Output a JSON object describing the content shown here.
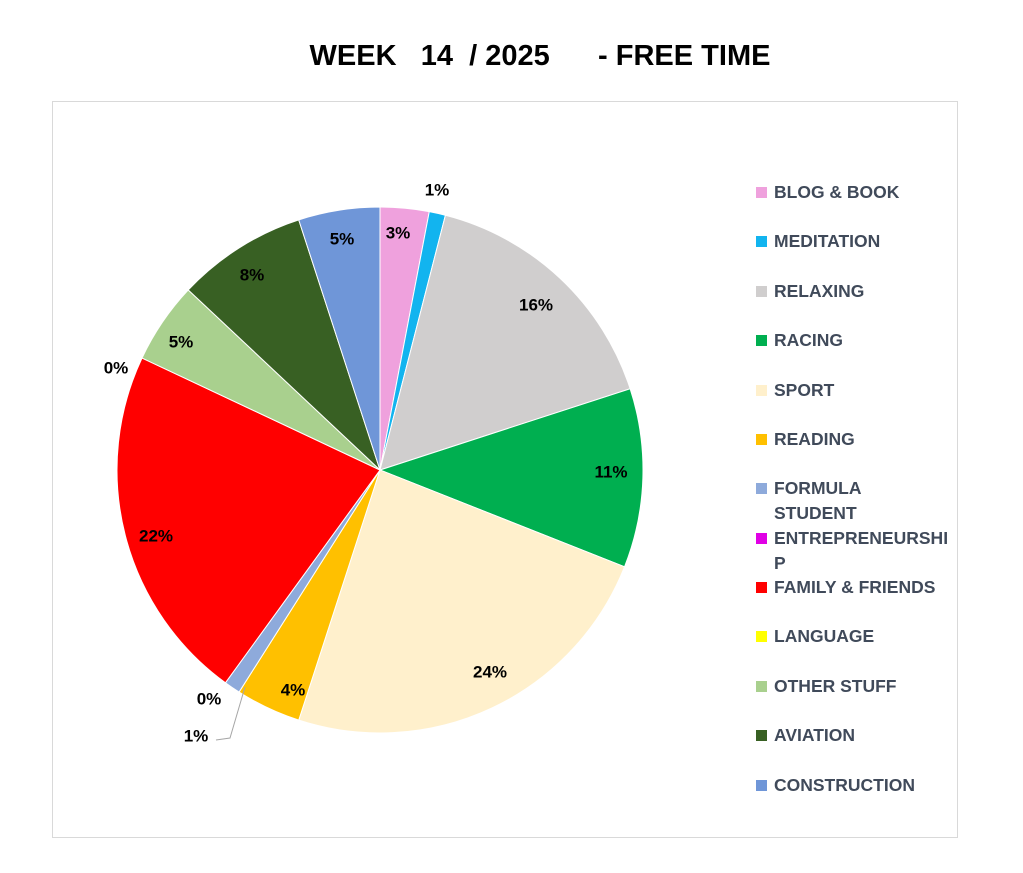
{
  "chart_data": {
    "type": "pie",
    "title": "WEEK   14  / 2025      - FREE TIME",
    "legend_position": "right",
    "slices": [
      {
        "name": "BLOG & BOOK",
        "value": 3,
        "label": "3%",
        "color": "#EFA1DD"
      },
      {
        "name": "MEDITATION",
        "value": 1,
        "label": "1%",
        "color": "#12B4EF"
      },
      {
        "name": "RELAXING",
        "value": 16,
        "label": "16%",
        "color": "#D0CECE"
      },
      {
        "name": "RACING",
        "value": 11,
        "label": "11%",
        "color": "#00AF50"
      },
      {
        "name": "SPORT",
        "value": 24,
        "label": "24%",
        "color": "#FFF0CC"
      },
      {
        "name": "READING",
        "value": 4,
        "label": "4%",
        "color": "#FFC000"
      },
      {
        "name": "FORMULA STUDENT",
        "value": 1,
        "label": "1%",
        "color": "#8EAADB"
      },
      {
        "name": "ENTREPRENEURSHIP",
        "value": 0,
        "label": "0%",
        "color": "#E000E5"
      },
      {
        "name": "FAMILY & FRIENDS",
        "value": 22,
        "label": "22%",
        "color": "#FF0000"
      },
      {
        "name": "LANGUAGE",
        "value": 0,
        "label": "",
        "color": "#FFFF00"
      },
      {
        "name": "OTHER STUFF",
        "value": 5,
        "label": "5%",
        "color": "#A9D08E"
      },
      {
        "name": "AVIATION",
        "value": 8,
        "label": "8%",
        "color": "#386023"
      },
      {
        "name": "CONSTRUCTION",
        "value": 5,
        "label": "5%",
        "color": "#6F96D8"
      }
    ],
    "extra_labels": [
      "0%"
    ]
  },
  "legend": {
    "items": [
      {
        "label": "BLOG & BOOK",
        "color": "#EFA1DD"
      },
      {
        "label": "MEDITATION",
        "color": "#12B4EF"
      },
      {
        "label": "RELAXING",
        "color": "#D0CECE"
      },
      {
        "label": "RACING",
        "color": "#00AF50"
      },
      {
        "label": "SPORT",
        "color": "#FFF0CC"
      },
      {
        "label": "READING",
        "color": "#FFC000"
      },
      {
        "label": "FORMULA STUDENT",
        "color": "#8EAADB"
      },
      {
        "label": "ENTREPRENEURSHIP",
        "color": "#E000E5"
      },
      {
        "label": "FAMILY & FRIENDS",
        "color": "#FF0000"
      },
      {
        "label": "LANGUAGE",
        "color": "#FFFF00"
      },
      {
        "label": "OTHER STUFF",
        "color": "#A9D08E"
      },
      {
        "label": "AVIATION",
        "color": "#386023"
      },
      {
        "label": "CONSTRUCTION",
        "color": "#6F96D8"
      }
    ]
  }
}
